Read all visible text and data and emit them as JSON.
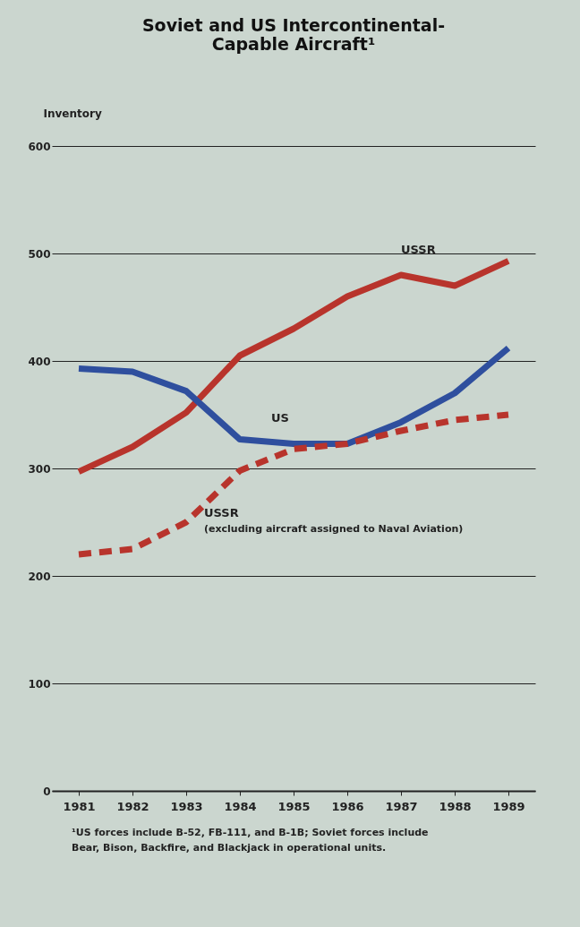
{
  "chart_data": {
    "type": "line",
    "title": [
      "Soviet and US Intercontinental-",
      "Capable Aircraft¹"
    ],
    "ylabel": "Inventory",
    "categories": [
      "1981",
      "1982",
      "1983",
      "1984",
      "1985",
      "1986",
      "1987",
      "1988",
      "1989"
    ],
    "series": [
      {
        "name": "USSR",
        "color": "#b8342c",
        "line_style": "solid",
        "values": [
          297,
          320,
          352,
          405,
          430,
          460,
          480,
          470,
          493
        ]
      },
      {
        "name": "US",
        "color": "#2f4f9e",
        "line_style": "solid",
        "values": [
          393,
          390,
          372,
          327,
          323,
          323,
          343,
          370,
          412
        ]
      },
      {
        "name": "USSR",
        "color": "#b8342c",
        "line_style": "dashed",
        "values": [
          220,
          225,
          250,
          298,
          318,
          323,
          335,
          345,
          350
        ]
      }
    ],
    "ylim": [
      0,
      600
    ],
    "yticks": [
      0,
      100,
      200,
      300,
      400,
      500,
      600
    ],
    "grid": "y",
    "marker": "none",
    "annotations": [
      "(excluding aircraft assigned to Naval Aviation)",
      "¹US forces include B-52, FB-111, and B-1B; Soviet forces include Bear, Bison, Backfire, and Blackjack in operational units."
    ]
  }
}
